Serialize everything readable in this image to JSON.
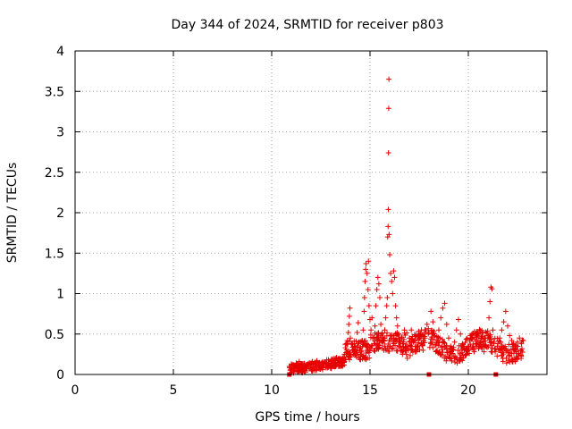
{
  "chart_data": {
    "type": "scatter",
    "title": "Day 344 of 2024, SRMTID for receiver p803",
    "xlabel": "GPS time / hours",
    "ylabel": "SRMTID / TECUs",
    "xlim": [
      0,
      24
    ],
    "ylim": [
      0,
      4
    ],
    "xticks": [
      0,
      5,
      10,
      15,
      20
    ],
    "yticks": [
      0,
      0.5,
      1,
      1.5,
      2,
      2.5,
      3,
      3.5,
      4
    ],
    "xtick_labels": [
      "0",
      "5",
      "10",
      "15",
      "20"
    ],
    "ytick_labels": [
      "0",
      "0.5",
      "1",
      "1.5",
      "2",
      "2.5",
      "3",
      "3.5",
      "4"
    ],
    "grid": true,
    "marker": "plus",
    "color": "#e60000",
    "series": [
      {
        "name": "p803",
        "points": [
          [
            10.9,
            0.1
          ],
          [
            11.0,
            0.13
          ],
          [
            11.05,
            0.08
          ],
          [
            11.1,
            0.12
          ],
          [
            11.2,
            0.1
          ],
          [
            11.25,
            0.14
          ],
          [
            11.3,
            0.09
          ],
          [
            11.35,
            0.12
          ],
          [
            11.4,
            0.16
          ],
          [
            11.45,
            0.11
          ],
          [
            11.5,
            0.08
          ],
          [
            11.6,
            0.13
          ],
          [
            11.7,
            0.05
          ],
          [
            11.75,
            0.09
          ],
          [
            11.8,
            0.12
          ],
          [
            11.9,
            0.07
          ],
          [
            12.0,
            0.1
          ],
          [
            12.05,
            0.15
          ],
          [
            12.1,
            0.12
          ],
          [
            12.2,
            0.09
          ],
          [
            12.25,
            0.13
          ],
          [
            12.3,
            0.17
          ],
          [
            12.4,
            0.11
          ],
          [
            12.45,
            0.14
          ],
          [
            12.5,
            0.08
          ],
          [
            12.6,
            0.12
          ],
          [
            12.7,
            0.15
          ],
          [
            12.75,
            0.1
          ],
          [
            12.8,
            0.18
          ],
          [
            12.9,
            0.13
          ],
          [
            13.0,
            0.16
          ],
          [
            13.05,
            0.12
          ],
          [
            13.1,
            0.19
          ],
          [
            13.2,
            0.14
          ],
          [
            13.25,
            0.17
          ],
          [
            13.3,
            0.21
          ],
          [
            13.4,
            0.15
          ],
          [
            13.5,
            0.18
          ],
          [
            13.55,
            0.14
          ],
          [
            13.6,
            0.2
          ],
          [
            13.7,
            0.25
          ],
          [
            13.75,
            0.33
          ],
          [
            13.8,
            0.38
          ],
          [
            13.85,
            0.42
          ],
          [
            13.9,
            0.52
          ],
          [
            13.92,
            0.62
          ],
          [
            13.95,
            0.72
          ],
          [
            13.98,
            0.82
          ],
          [
            14.0,
            0.45
          ],
          [
            14.05,
            0.38
          ],
          [
            14.1,
            0.3
          ],
          [
            14.15,
            0.25
          ],
          [
            14.2,
            0.35
          ],
          [
            14.25,
            0.28
          ],
          [
            14.3,
            0.41
          ],
          [
            14.35,
            0.52
          ],
          [
            14.4,
            0.64
          ],
          [
            14.45,
            0.4
          ],
          [
            14.5,
            0.33
          ],
          [
            14.55,
            0.25
          ],
          [
            14.6,
            0.42
          ],
          [
            14.65,
            0.55
          ],
          [
            14.7,
            0.78
          ],
          [
            14.72,
            0.95
          ],
          [
            14.75,
            1.15
          ],
          [
            14.78,
            1.3
          ],
          [
            14.8,
            1.37
          ],
          [
            14.85,
            1.25
          ],
          [
            14.9,
            1.05
          ],
          [
            14.92,
            1.4
          ],
          [
            14.95,
            0.85
          ],
          [
            15.0,
            0.68
          ],
          [
            15.05,
            0.55
          ],
          [
            15.1,
            0.7
          ],
          [
            15.15,
            0.45
          ],
          [
            15.2,
            0.38
          ],
          [
            15.25,
            0.6
          ],
          [
            15.3,
            0.85
          ],
          [
            15.35,
            1.05
          ],
          [
            15.4,
            1.2
          ],
          [
            15.45,
            1.12
          ],
          [
            15.5,
            0.95
          ],
          [
            15.55,
            0.62
          ],
          [
            15.6,
            0.5
          ],
          [
            15.65,
            0.42
          ],
          [
            15.7,
            0.3
          ],
          [
            15.75,
            0.55
          ],
          [
            15.8,
            0.7
          ],
          [
            15.85,
            0.85
          ],
          [
            15.88,
            0.95
          ],
          [
            15.9,
            1.7
          ],
          [
            15.92,
            1.83
          ],
          [
            15.93,
            2.04
          ],
          [
            15.94,
            2.74
          ],
          [
            15.95,
            3.29
          ],
          [
            15.96,
            3.65
          ],
          [
            15.97,
            1.73
          ],
          [
            16.0,
            1.48
          ],
          [
            16.05,
            1.25
          ],
          [
            16.1,
            1.15
          ],
          [
            16.15,
            1.0
          ],
          [
            16.2,
            1.28
          ],
          [
            16.25,
            1.2
          ],
          [
            16.3,
            0.85
          ],
          [
            16.35,
            0.7
          ],
          [
            16.4,
            0.6
          ],
          [
            16.45,
            0.5
          ],
          [
            16.5,
            0.42
          ],
          [
            16.55,
            0.35
          ],
          [
            16.6,
            0.3
          ],
          [
            16.65,
            0.25
          ],
          [
            16.7,
            0.4
          ],
          [
            16.75,
            0.55
          ],
          [
            16.8,
            0.35
          ],
          [
            16.85,
            0.25
          ],
          [
            16.9,
            0.2
          ],
          [
            16.95,
            0.3
          ],
          [
            17.0,
            0.45
          ],
          [
            17.1,
            0.55
          ],
          [
            17.2,
            0.4
          ],
          [
            17.3,
            0.28
          ],
          [
            17.4,
            0.35
          ],
          [
            17.5,
            0.48
          ],
          [
            17.6,
            0.38
          ],
          [
            17.7,
            0.3
          ],
          [
            17.8,
            0.45
          ],
          [
            17.9,
            0.62
          ],
          [
            18.0,
            0.52
          ],
          [
            18.1,
            0.78
          ],
          [
            18.2,
            0.65
          ],
          [
            18.3,
            0.48
          ],
          [
            18.4,
            0.42
          ],
          [
            18.5,
            0.55
          ],
          [
            18.6,
            0.7
          ],
          [
            18.7,
            0.82
          ],
          [
            18.8,
            0.88
          ],
          [
            18.9,
            0.62
          ],
          [
            19.0,
            0.45
          ],
          [
            19.1,
            0.35
          ],
          [
            19.2,
            0.3
          ],
          [
            19.3,
            0.4
          ],
          [
            19.4,
            0.55
          ],
          [
            19.5,
            0.68
          ],
          [
            19.6,
            0.5
          ],
          [
            19.7,
            0.38
          ],
          [
            19.8,
            0.3
          ],
          [
            19.9,
            0.25
          ],
          [
            20.0,
            0.35
          ],
          [
            20.1,
            0.45
          ],
          [
            20.2,
            0.33
          ],
          [
            20.3,
            0.28
          ],
          [
            20.4,
            0.35
          ],
          [
            20.5,
            0.5
          ],
          [
            20.6,
            0.4
          ],
          [
            20.7,
            0.32
          ],
          [
            20.8,
            0.28
          ],
          [
            20.9,
            0.35
          ],
          [
            21.0,
            0.48
          ],
          [
            21.05,
            0.7
          ],
          [
            21.1,
            0.9
          ],
          [
            21.15,
            1.08
          ],
          [
            21.2,
            1.06
          ],
          [
            21.25,
            0.55
          ],
          [
            21.3,
            0.4
          ],
          [
            21.4,
            0.32
          ],
          [
            21.5,
            0.38
          ],
          [
            21.6,
            0.45
          ],
          [
            21.7,
            0.55
          ],
          [
            21.8,
            0.65
          ],
          [
            21.9,
            0.78
          ],
          [
            22.0,
            0.6
          ],
          [
            22.1,
            0.48
          ],
          [
            22.2,
            0.42
          ],
          [
            22.3,
            0.38
          ],
          [
            22.4,
            0.35
          ],
          [
            22.5,
            0.4
          ],
          [
            22.6,
            0.45
          ],
          [
            22.7,
            0.38
          ],
          [
            22.8,
            0.42
          ]
        ]
      }
    ],
    "band": {
      "x_start": 10.9,
      "x_end": 22.8,
      "y_center": 0.35,
      "y_spread": 0.12,
      "count": 700
    },
    "gap_markers_x": [
      10.9,
      18.0,
      21.4
    ]
  }
}
